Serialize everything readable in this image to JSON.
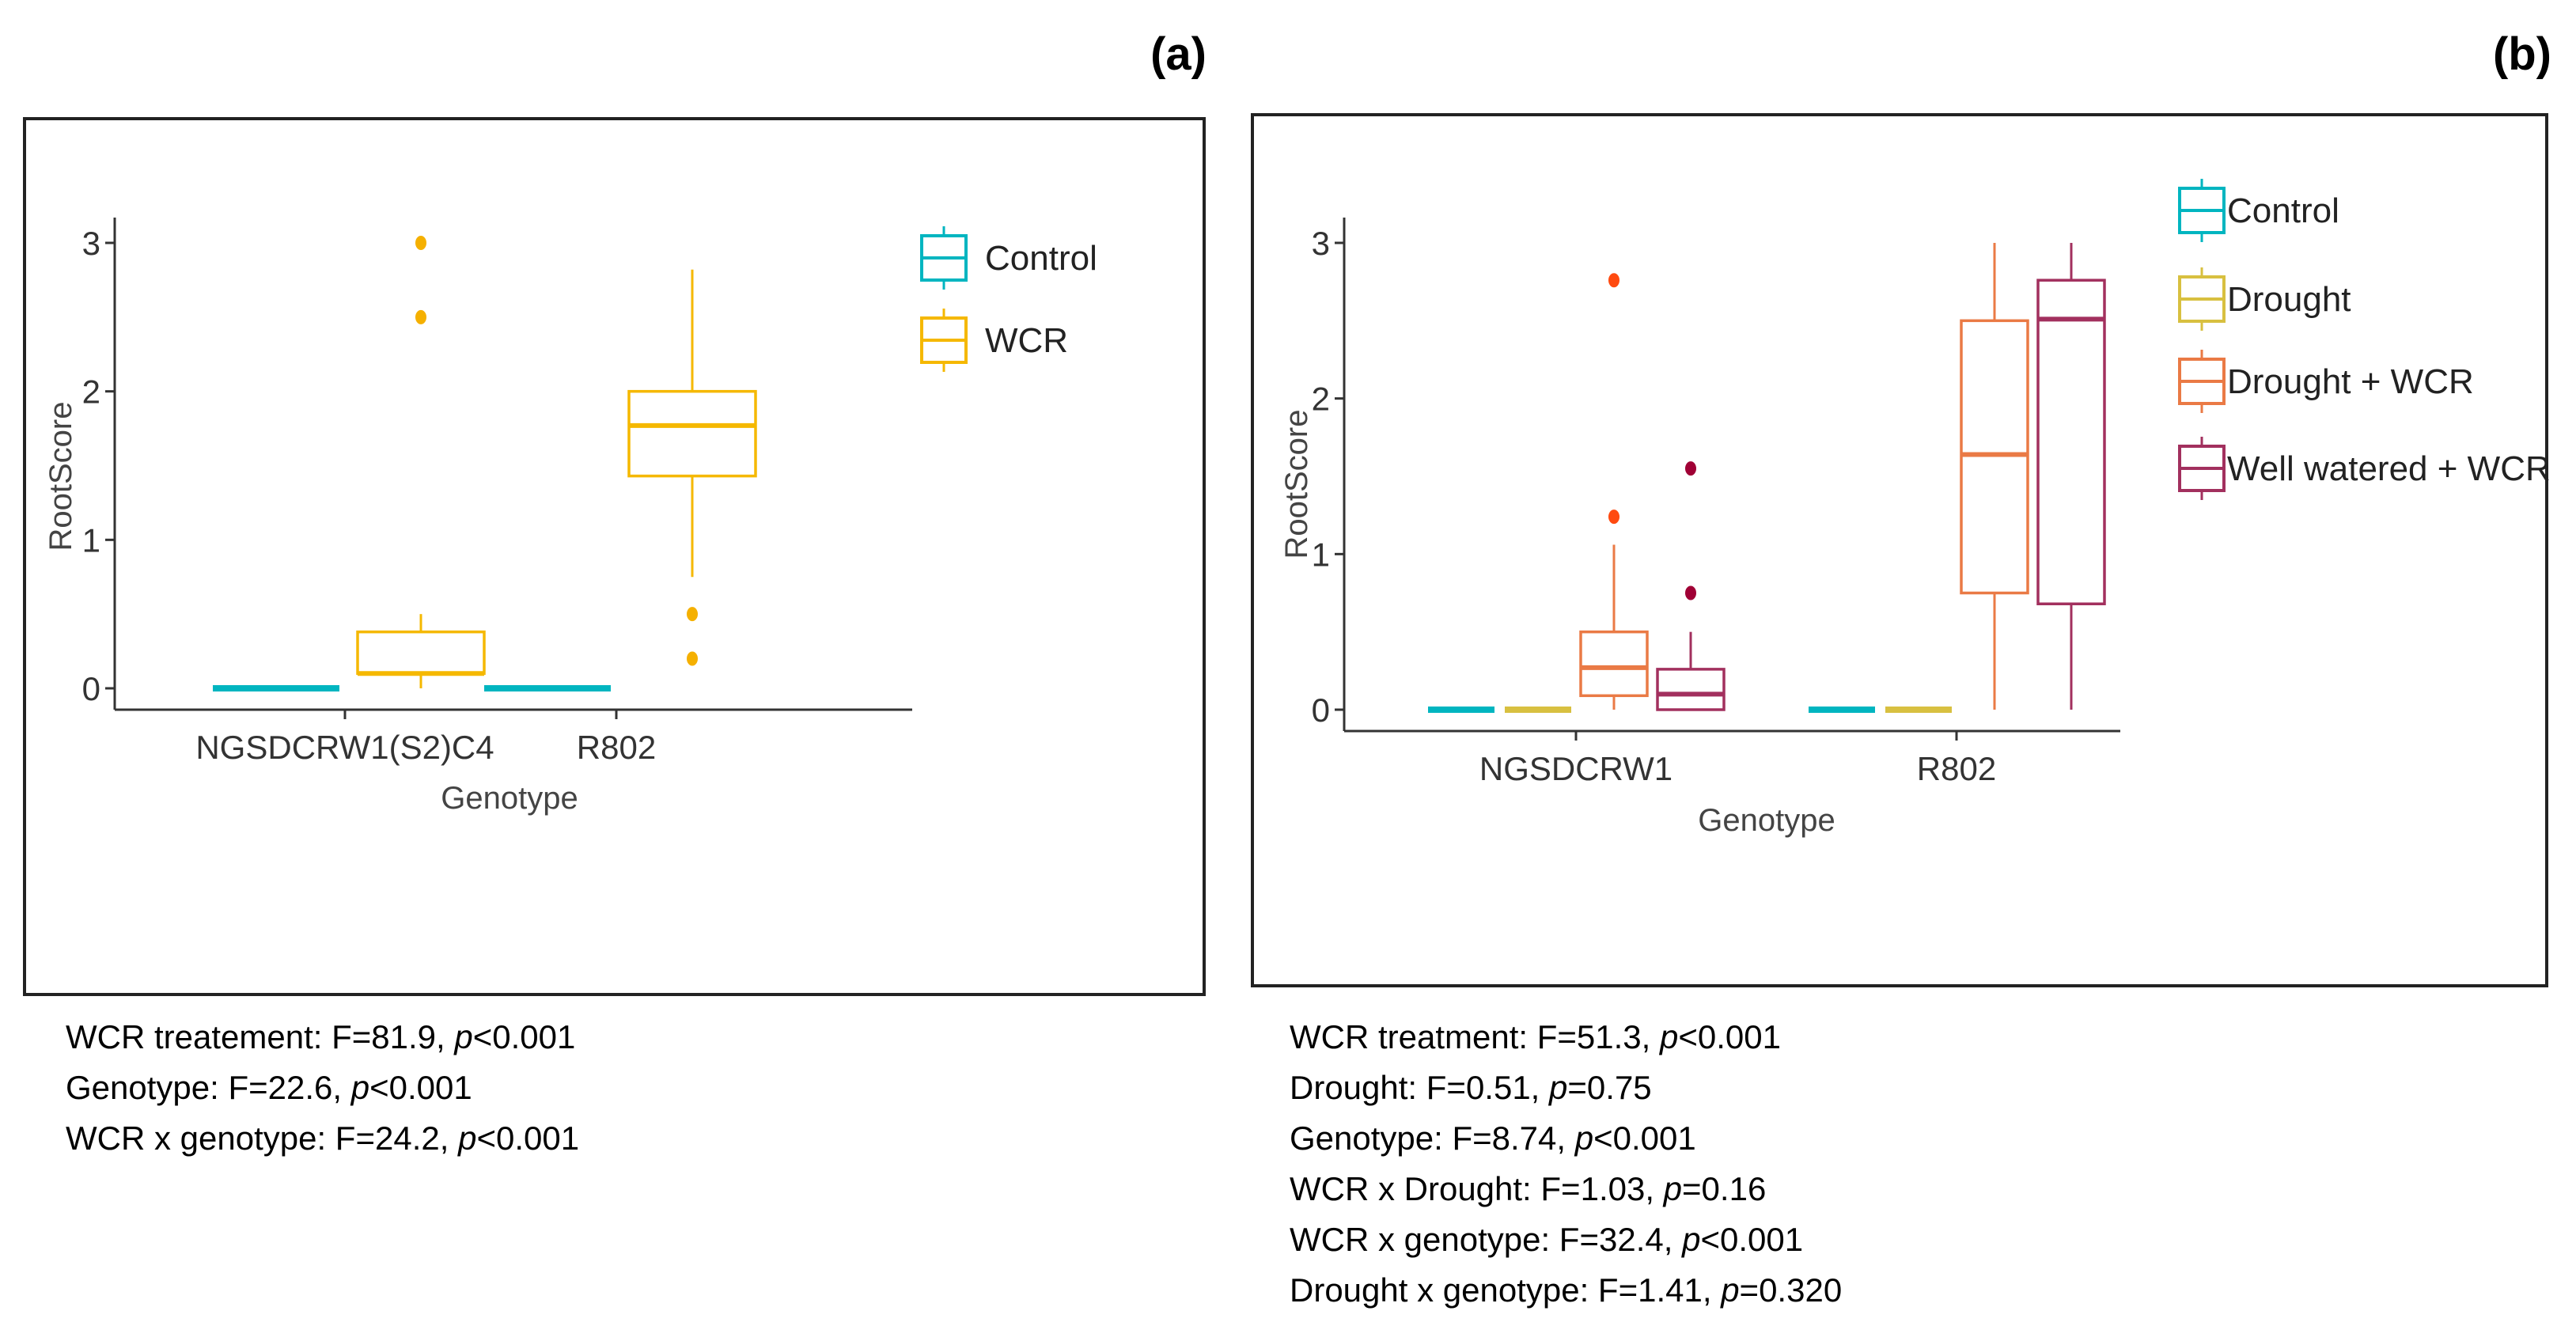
{
  "chart_data": [
    {
      "type": "box",
      "panel_label": "(a)",
      "xlabel": "Genotype",
      "ylabel": "RootScore",
      "ylim": [
        0,
        3
      ],
      "yticks": [
        "0",
        "1",
        "2",
        "3"
      ],
      "categories": [
        "NGSDCRW1(S2)C4",
        "R802"
      ],
      "legend_position": "right",
      "series": [
        {
          "name": "Control",
          "color": "#00b5c0",
          "outlier_color": "#00b5c0",
          "boxes": [
            {
              "min": 0,
              "q1": 0,
              "median": 0,
              "q3": 0,
              "max": 0,
              "outliers": []
            },
            {
              "min": 0,
              "q1": 0,
              "median": 0,
              "q3": 0,
              "max": 0,
              "outliers": []
            }
          ]
        },
        {
          "name": "WCR",
          "color": "#f5b800",
          "outlier_color": "#f5b000",
          "boxes": [
            {
              "min": 0,
              "q1": 0.1,
              "median": 0.1,
              "q3": 0.38,
              "max": 0.5,
              "outliers": [
                2.5,
                3.0
              ]
            },
            {
              "min": 0.75,
              "q1": 1.43,
              "median": 1.77,
              "q3": 2.0,
              "max": 2.82,
              "outliers": [
                0.5,
                0.2
              ]
            }
          ]
        }
      ],
      "stats": [
        {
          "pre": "WCR treatement: F=81.9, ",
          "p": "p",
          "post": "<0.001"
        },
        {
          "pre": "Genotype: F=22.6, ",
          "p": "p",
          "post": "<0.001"
        },
        {
          "pre": "WCR x genotype: F=24.2, ",
          "p": "p",
          "post": "<0.001"
        }
      ]
    },
    {
      "type": "box",
      "panel_label": "(b)",
      "xlabel": "Genotype",
      "ylabel": "RootScore",
      "ylim": [
        0,
        3
      ],
      "yticks": [
        "0",
        "1",
        "2",
        "3"
      ],
      "categories": [
        "NGSDCRW1",
        "R802"
      ],
      "legend_position": "right",
      "series": [
        {
          "name": "Control",
          "color": "#00b5c0",
          "outlier_color": "#00b5c0",
          "boxes": [
            {
              "min": 0,
              "q1": 0,
              "median": 0,
              "q3": 0,
              "max": 0,
              "outliers": []
            },
            {
              "min": 0,
              "q1": 0,
              "median": 0,
              "q3": 0,
              "max": 0,
              "outliers": []
            }
          ]
        },
        {
          "name": "Drought",
          "color": "#d8c040",
          "outlier_color": "#d8c040",
          "boxes": [
            {
              "min": 0,
              "q1": 0,
              "median": 0,
              "q3": 0,
              "max": 0,
              "outliers": []
            },
            {
              "min": 0,
              "q1": 0,
              "median": 0,
              "q3": 0,
              "max": 0,
              "outliers": []
            }
          ]
        },
        {
          "name": "Drought + WCR",
          "color": "#ea7a45",
          "outlier_color": "#ff4a10",
          "boxes": [
            {
              "min": 0,
              "q1": 0.09,
              "median": 0.27,
              "q3": 0.5,
              "max": 1.06,
              "outliers": [
                1.24,
                2.76
              ]
            },
            {
              "min": 0,
              "q1": 0.75,
              "median": 1.64,
              "q3": 2.5,
              "max": 3.0,
              "outliers": []
            }
          ]
        },
        {
          "name": "Well watered + WCR",
          "color": "#a2305e",
          "outlier_color": "#a00035",
          "boxes": [
            {
              "min": 0,
              "q1": 0,
              "median": 0.1,
              "q3": 0.26,
              "max": 0.5,
              "outliers": [
                0.75,
                1.55
              ]
            },
            {
              "min": 0,
              "q1": 0.68,
              "median": 2.51,
              "q3": 2.76,
              "max": 3.0,
              "outliers": []
            }
          ]
        }
      ],
      "stats": [
        {
          "pre": "WCR treatment: F=51.3, ",
          "p": "p",
          "post": "<0.001"
        },
        {
          "pre": "Drought: F=0.51, ",
          "p": "p",
          "post": "=0.75"
        },
        {
          "pre": "Genotype: F=8.74, ",
          "p": "p",
          "post": "<0.001"
        },
        {
          "pre": "WCR x Drought: F=1.03, ",
          "p": "p",
          "post": "=0.16"
        },
        {
          "pre": "WCR x genotype: F=32.4, ",
          "p": "p",
          "post": "<0.001"
        },
        {
          "pre": "Drought x genotype: F=1.41, ",
          "p": "p",
          "post": "=0.320"
        }
      ]
    }
  ]
}
